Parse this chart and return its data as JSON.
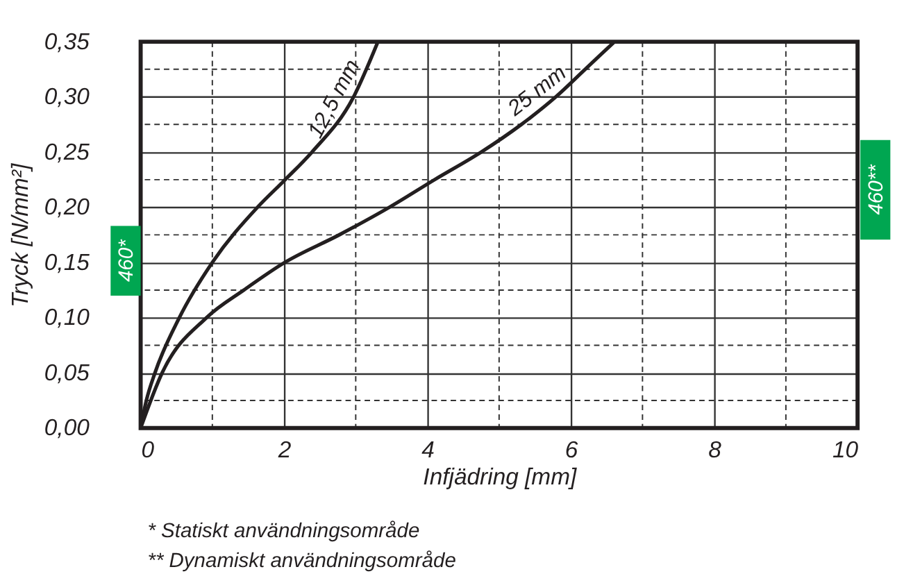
{
  "chart_data": {
    "type": "line",
    "xlabel": "Infjädring [mm]",
    "ylabel": "Tryck [N/mm²]",
    "xlim": [
      0,
      10
    ],
    "xticks": [
      0,
      2,
      4,
      6,
      8,
      10
    ],
    "ylim": [
      0,
      0.35
    ],
    "yticks": [
      {
        "value": 0,
        "label": "0,00"
      },
      {
        "value": 0.05,
        "label": "0,05"
      },
      {
        "value": 0.1,
        "label": "0,10"
      },
      {
        "value": 0.15,
        "label": "0,15"
      },
      {
        "value": 0.2,
        "label": "0,20"
      },
      {
        "value": 0.25,
        "label": "0,25"
      },
      {
        "value": 0.3,
        "label": "0,30"
      },
      {
        "value": 0.35,
        "label": "0,35"
      }
    ],
    "grid": true,
    "marker": "none",
    "line_style": "solid",
    "series": [
      {
        "name": "12,5 mm",
        "color": "#231f20",
        "x": [
          0,
          0.08,
          0.2,
          0.54,
          1.0,
          1.63,
          2.0,
          2.39,
          2.97,
          3.31
        ],
        "values": [
          0,
          0.025,
          0.05,
          0.1,
          0.15,
          0.2,
          0.224,
          0.25,
          0.3,
          0.35
        ]
      },
      {
        "name": "25 mm",
        "color": "#231f20",
        "x": [
          0,
          0.3,
          0.92,
          1.44,
          2.01,
          2.77,
          3.47,
          4.1,
          4.75,
          5.31,
          5.79,
          6.2,
          6.61
        ],
        "values": [
          0,
          0.05,
          0.1,
          0.125,
          0.15,
          0.175,
          0.2,
          0.225,
          0.25,
          0.275,
          0.3,
          0.325,
          0.35
        ]
      }
    ],
    "annotations": [
      "460*",
      "460**",
      "*   Statiskt användningsområde",
      "** Dynamiskt användningsområde"
    ]
  }
}
